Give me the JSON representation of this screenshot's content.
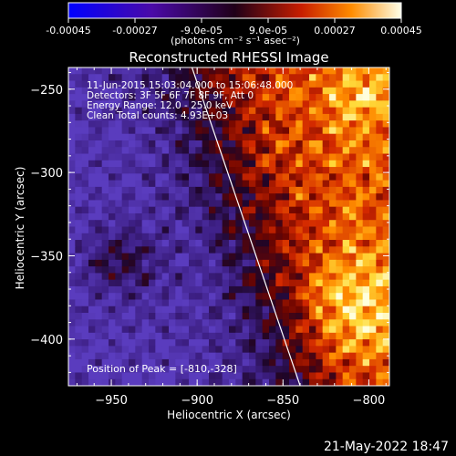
{
  "colorbar": {
    "ticks": [
      "-0.00045",
      "-0.00027",
      "-9.0e-05",
      "9.0e-05",
      "0.00027",
      "0.00045"
    ],
    "tick_values": [
      -0.00045,
      -0.00027,
      -9e-05,
      9e-05,
      0.00027,
      0.00045
    ],
    "range": [
      -0.00045,
      0.00045
    ],
    "unit_label": "(photons cm⁻² s⁻¹ asec⁻²)"
  },
  "chart_data": {
    "type": "heatmap",
    "title": "Reconstructed RHESSI Image",
    "xlabel": "Heliocentric X (arcsec)",
    "ylabel": "Heliocentric Y (arcsec)",
    "xlim": [
      -975,
      -788
    ],
    "ylim": [
      -428,
      -237
    ],
    "x_ticks": [
      -950,
      -900,
      -850,
      -800
    ],
    "x_tick_labels": [
      "−950",
      "−900",
      "−850",
      "−800"
    ],
    "y_ticks": [
      -250,
      -300,
      -350,
      -400
    ],
    "y_tick_labels": [
      "−250",
      "−300",
      "−350",
      "−400"
    ],
    "annotations": [
      "11-Jun-2015 15:03:04.000 to 15:06:48.000",
      "Detectors: 3F 5F 6F 7F 8F 9F, Att 0",
      "Energy Range: 12.0 - 25.0 keV",
      "Clean     Total counts: 4.93E+03"
    ],
    "peak_label": "Position of Peak = [-810,-328]",
    "limb": {
      "x1": -903,
      "y1": -237,
      "x2": -840,
      "y2": -428
    },
    "footer": "21-May-2022 18:47"
  }
}
